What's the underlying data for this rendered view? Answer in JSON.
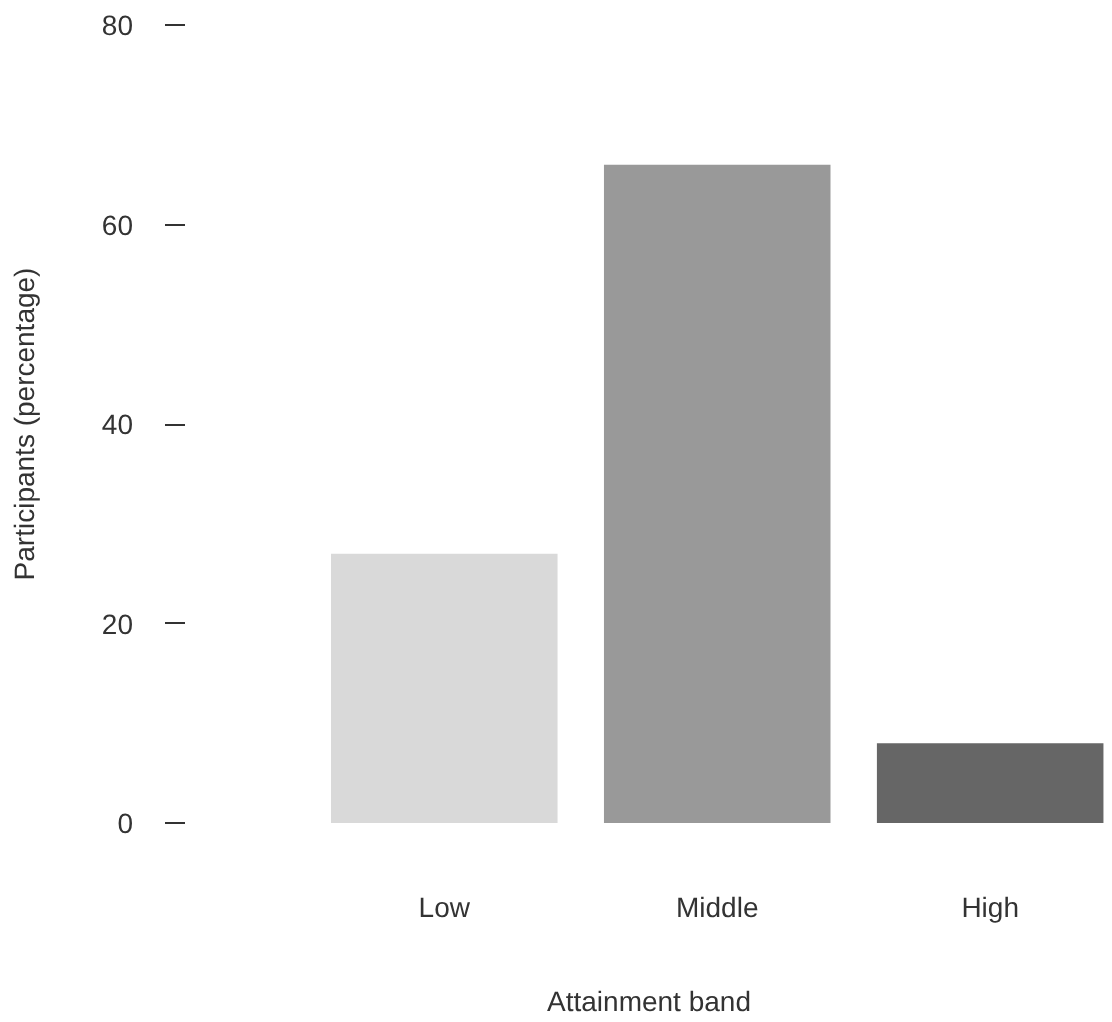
{
  "chart_data": {
    "type": "bar",
    "xlabel": "Attainment band",
    "ylabel": "Participants (percentage)",
    "categories": [
      "Low",
      "Middle",
      "High"
    ],
    "values": [
      27,
      66,
      8
    ],
    "colors": [
      "#d9d9d9",
      "#999999",
      "#666666"
    ],
    "ylim": [
      0,
      80
    ],
    "yticks": [
      0,
      20,
      40,
      60,
      80
    ],
    "grid": false
  }
}
